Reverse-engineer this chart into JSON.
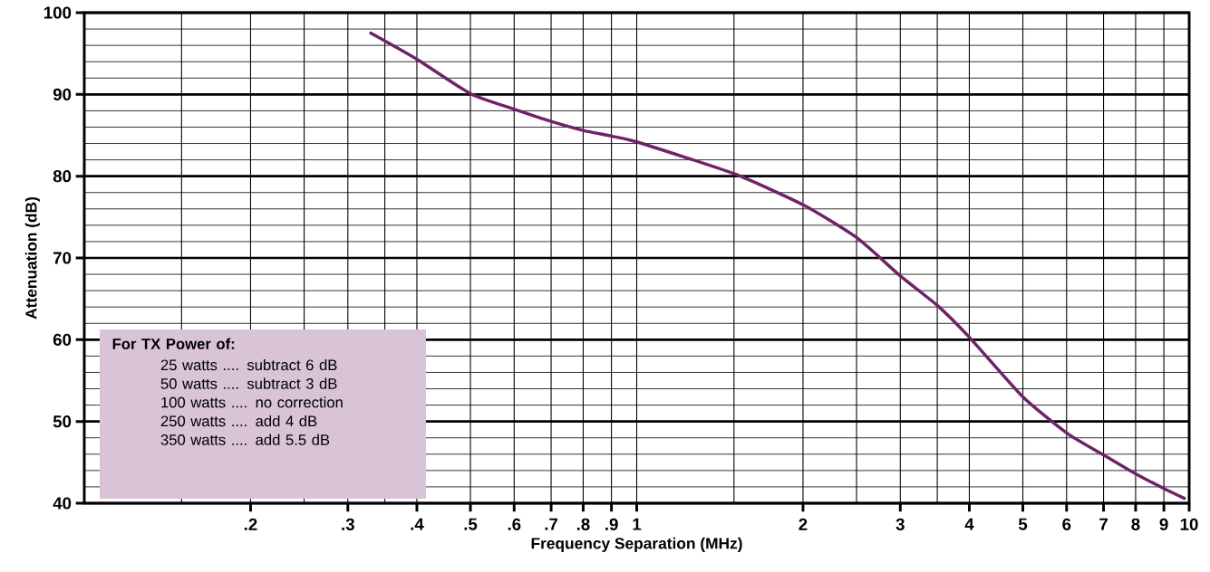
{
  "chart_data": {
    "type": "line",
    "xlabel": "Frequency Separation (MHz)",
    "ylabel": "Attenuation (dB)",
    "log": "x",
    "xlim": [
      0.1,
      10
    ],
    "ylim": [
      40,
      100
    ],
    "xticks": [
      {
        "value": 0.2,
        "label": ".2"
      },
      {
        "value": 0.3,
        "label": ".3"
      },
      {
        "value": 0.4,
        "label": ".4"
      },
      {
        "value": 0.5,
        "label": ".5"
      },
      {
        "value": 0.6,
        "label": ".6"
      },
      {
        "value": 0.7,
        "label": ".7"
      },
      {
        "value": 0.8,
        "label": ".8"
      },
      {
        "value": 0.9,
        "label": ".9"
      },
      1,
      2,
      3,
      4,
      5,
      6,
      7,
      8,
      9,
      10
    ],
    "yticks": [
      40,
      50,
      60,
      70,
      80,
      90,
      100
    ],
    "grid": true,
    "series": [
      {
        "color": "#6e2366",
        "x": [
          0.33,
          0.4,
          0.5,
          0.6,
          0.7,
          0.8,
          0.9,
          1,
          1.5,
          2,
          2.5,
          3,
          3.5,
          4,
          5,
          6,
          7,
          8,
          9,
          9.8
        ],
        "values": [
          97.5,
          94.3,
          90.1,
          88.2,
          86.7,
          85.6,
          84.9,
          84.2,
          80.3,
          76.5,
          72.5,
          67.8,
          64.2,
          60.3,
          53.0,
          48.6,
          45.9,
          43.6,
          41.8,
          40.6
        ]
      }
    ],
    "annotations": [
      "For TX Power of:",
      "25 watts .... subtract 6 dB",
      "50 watts .... subtract 3 dB",
      "100 watts .... no correction",
      "250 watts .... add 4 dB",
      "350 watts .... add 5.5 dB"
    ]
  }
}
